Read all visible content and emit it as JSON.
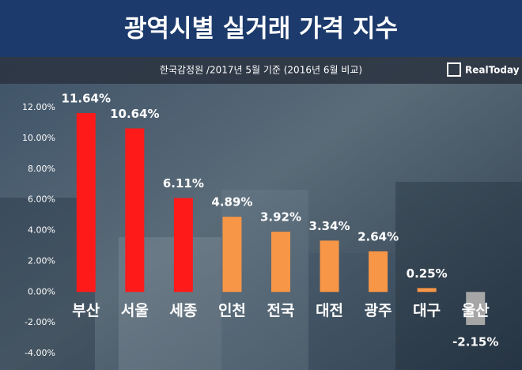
{
  "chart_data": {
    "type": "bar",
    "title": "광역시별 실거래 가격 지수",
    "subtitle": "한국감정원 /2017년 5월 기준 (2016년 6월 비교)",
    "logo": "RealToday",
    "categories": [
      "부산",
      "서울",
      "세종",
      "인천",
      "전국",
      "대전",
      "광주",
      "대구",
      "울산"
    ],
    "values": [
      11.64,
      10.64,
      6.11,
      4.89,
      3.92,
      3.34,
      2.64,
      0.25,
      -2.15
    ],
    "value_labels": [
      "11.64%",
      "10.64%",
      "6.11%",
      "4.89%",
      "3.92%",
      "3.34%",
      "2.64%",
      "0.25%",
      "-2.15%"
    ],
    "colors": [
      "#ff1a1a",
      "#ff1a1a",
      "#ff1a1a",
      "#f79646",
      "#f79646",
      "#f79646",
      "#f79646",
      "#f79646",
      "#a6a6a6"
    ],
    "ylim": [
      -4,
      12
    ],
    "yticks": [
      {
        "value": -4,
        "label": "-4.00%"
      },
      {
        "value": -2,
        "label": "-2.00%"
      },
      {
        "value": 0,
        "label": "0.00%"
      },
      {
        "value": 2,
        "label": "2.00%"
      },
      {
        "value": 4,
        "label": "4.00%"
      },
      {
        "value": 6,
        "label": "6.00%"
      },
      {
        "value": 8,
        "label": "8.00%"
      },
      {
        "value": 10,
        "label": "10.00%"
      },
      {
        "value": 12,
        "label": "12.00%"
      }
    ]
  }
}
